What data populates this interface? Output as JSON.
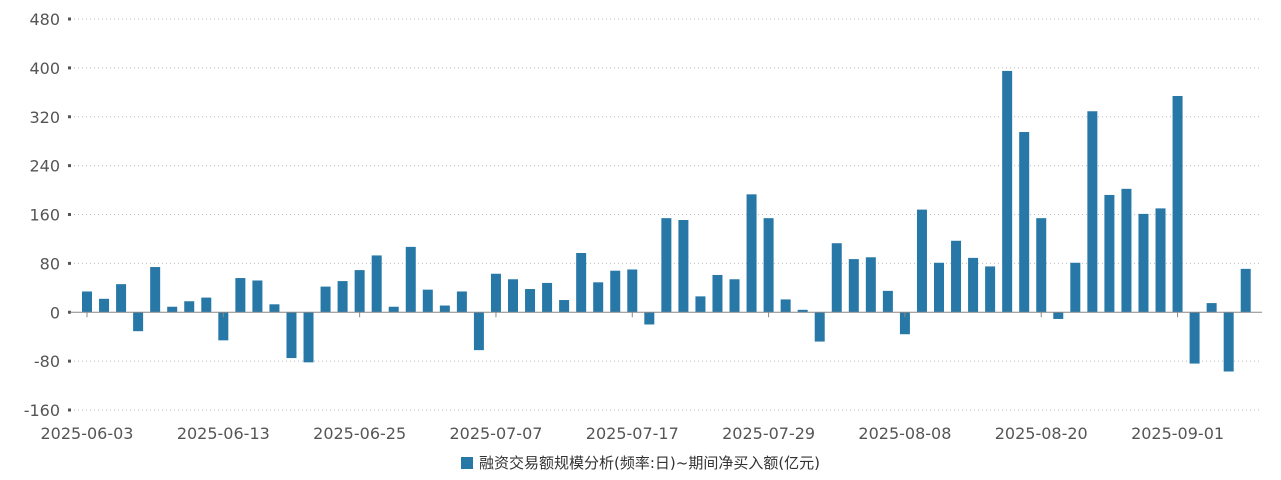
{
  "chart_data": {
    "type": "bar",
    "ylim": [
      -160,
      480
    ],
    "yticks": [
      -160,
      -80,
      0,
      80,
      160,
      240,
      320,
      400,
      480
    ],
    "grid": true,
    "legend_position": "bottom-center",
    "colors": {
      "bar": "#2878a7",
      "grid": "#bbbbbb",
      "axis": "#888888"
    },
    "xtick_labels": [
      {
        "index": 0,
        "label": "2025-06-03"
      },
      {
        "index": 8,
        "label": "2025-06-13"
      },
      {
        "index": 16,
        "label": "2025-06-25"
      },
      {
        "index": 24,
        "label": "2025-07-07"
      },
      {
        "index": 32,
        "label": "2025-07-17"
      },
      {
        "index": 40,
        "label": "2025-07-29"
      },
      {
        "index": 48,
        "label": "2025-08-08"
      },
      {
        "index": 56,
        "label": "2025-08-20"
      },
      {
        "index": 64,
        "label": "2025-09-01"
      }
    ],
    "series": [
      {
        "name": "融资交易额规模分析(频率:日)~期间净买入额(亿元)",
        "values": [
          34,
          22,
          46,
          -31,
          74,
          9,
          18,
          24,
          -46,
          56,
          52,
          13,
          -75,
          -82,
          42,
          51,
          69,
          93,
          9,
          107,
          37,
          11,
          34,
          -62,
          63,
          54,
          38,
          48,
          20,
          97,
          49,
          68,
          70,
          -20,
          154,
          151,
          26,
          61,
          54,
          193,
          154,
          21,
          4,
          -48,
          113,
          87,
          90,
          35,
          -36,
          168,
          81,
          117,
          89,
          75,
          395,
          295,
          154,
          -11,
          81,
          329,
          192,
          202,
          161,
          170,
          354,
          -84,
          15,
          -97,
          71
        ]
      }
    ]
  }
}
